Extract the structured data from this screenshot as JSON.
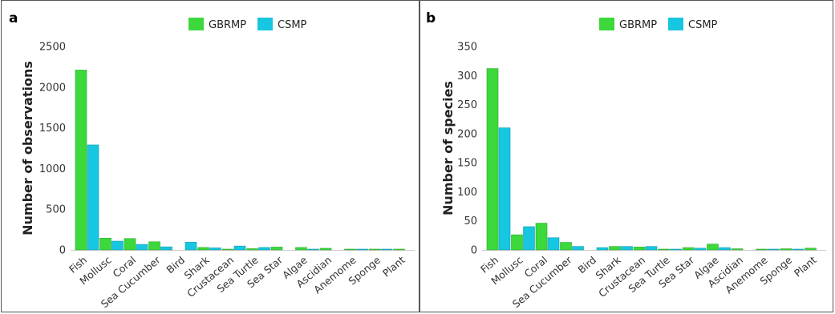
{
  "colors": {
    "GBRMP": "#3cd83c",
    "CSMP": "#17c6e0",
    "GBRMP_edge": "#2aa82a",
    "CSMP_edge": "#0f9db3"
  },
  "chart_data": [
    {
      "type": "bar",
      "panel_label": "a",
      "title": "",
      "xlabel": "",
      "ylabel": "Number of observations",
      "ylim": [
        0,
        2500
      ],
      "yticks": [
        "0",
        "500",
        "1000",
        "1500",
        "2000",
        "2500"
      ],
      "ytick_values": [
        0,
        500,
        1000,
        1500,
        2000,
        2500
      ],
      "grid": false,
      "legend": "top-center",
      "categories": [
        "Fish",
        "Mollusc",
        "Coral",
        "Sea Cucumber",
        "Bird",
        "Shark",
        "Crustacean",
        "Sea Turtle",
        "Sea Star",
        "Algae",
        "Ascidian",
        "Anemome",
        "Sponge",
        "Plant"
      ],
      "series": [
        {
          "name": "GBRMP",
          "values": [
            2210,
            145,
            140,
            100,
            0,
            30,
            6,
            15,
            35,
            30,
            20,
            2,
            3,
            2
          ]
        },
        {
          "name": "CSMP",
          "values": [
            1290,
            108,
            68,
            38,
            95,
            25,
            48,
            30,
            0,
            8,
            0,
            3,
            3,
            0
          ]
        }
      ]
    },
    {
      "type": "bar",
      "panel_label": "b",
      "title": "",
      "xlabel": "",
      "ylabel": "Number of species",
      "ylim": [
        0,
        350
      ],
      "yticks": [
        "0",
        "50",
        "100",
        "150",
        "200",
        "250",
        "300",
        "350"
      ],
      "ytick_values": [
        0,
        50,
        100,
        150,
        200,
        250,
        300,
        350
      ],
      "grid": false,
      "legend": "top-center",
      "categories": [
        "Fish",
        "Mollusc",
        "Coral",
        "Sea Cucumber",
        "Bird",
        "Shark",
        "Crustacean",
        "Sea Turtle",
        "Sea Star",
        "Algae",
        "Ascidian",
        "Anemome",
        "Sponge",
        "Plant"
      ],
      "series": [
        {
          "name": "GBRMP",
          "values": [
            312,
            26,
            46,
            13,
            0,
            6,
            5,
            1,
            4,
            10,
            2,
            1,
            2,
            3
          ]
        },
        {
          "name": "CSMP",
          "values": [
            210,
            40,
            21,
            6,
            4,
            6,
            6,
            1,
            3,
            4,
            0,
            1,
            1,
            0
          ]
        }
      ]
    }
  ]
}
